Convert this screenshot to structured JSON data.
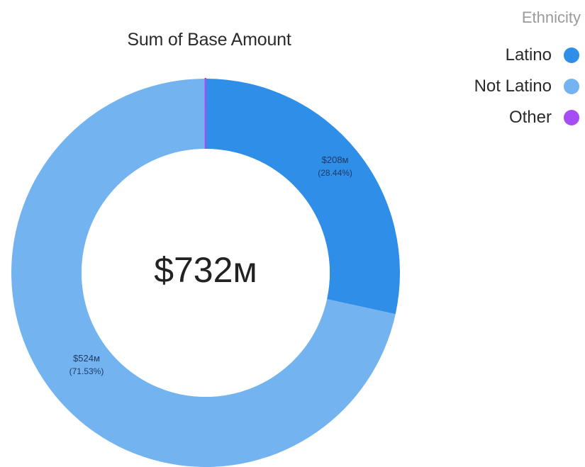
{
  "chart_data": {
    "type": "pie",
    "variant": "donut",
    "title": "Sum of Base Amount",
    "center_label": "$732м",
    "legend_title": "Ethnicity",
    "legend_position": "top-right",
    "slices": [
      {
        "name": "Latino",
        "value": 208,
        "percent": 28.44,
        "value_label": "$208м",
        "percent_label": "(28.44%)",
        "color": "#2f8ee8"
      },
      {
        "name": "Not Latino",
        "value": 524,
        "percent": 71.53,
        "value_label": "$524м",
        "percent_label": "(71.53%)",
        "color": "#73b4f0"
      },
      {
        "name": "Other",
        "value": 0.2,
        "percent": 0.03,
        "value_label": "",
        "percent_label": "",
        "color": "#a64df5"
      }
    ]
  }
}
